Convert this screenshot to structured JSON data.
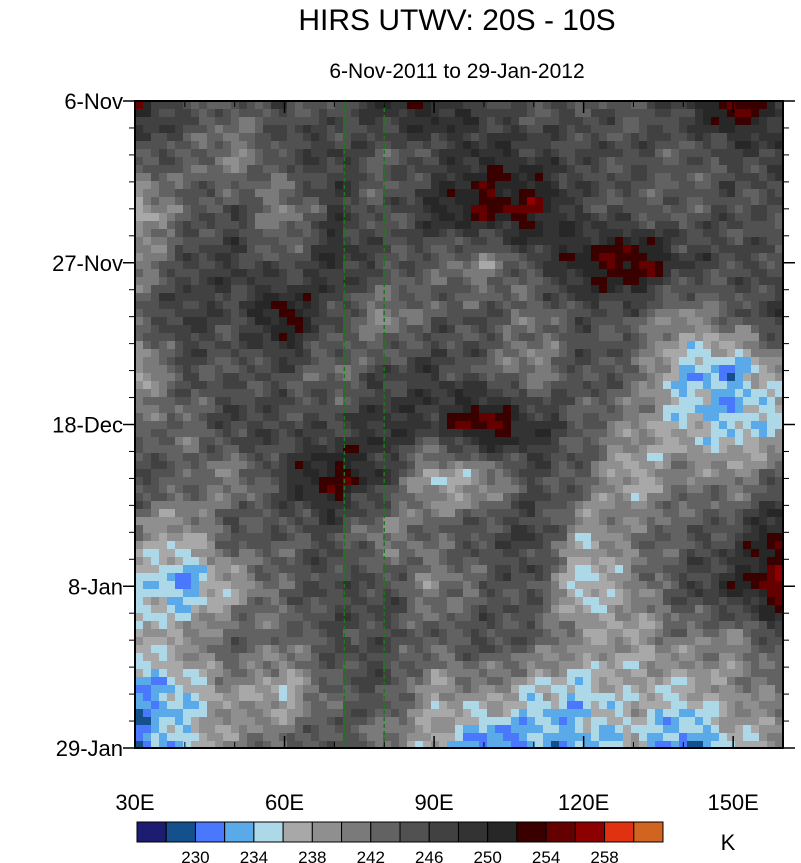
{
  "chart_data": {
    "type": "heatmap",
    "title": "HIRS UTWV: 20S - 10S",
    "subtitle": "6-Nov-2011 to 29-Jan-2012",
    "x_axis": {
      "range_deg_east": [
        30,
        160
      ],
      "ticks": [
        30,
        60,
        90,
        120,
        150
      ],
      "tick_labels": [
        "30E",
        "60E",
        "90E",
        "120E",
        "150E"
      ],
      "minor_step": 10
    },
    "y_axis": {
      "range_days_since_6Nov": [
        0,
        84
      ],
      "ticks": [
        0,
        21,
        42,
        63,
        84
      ],
      "tick_labels": [
        "6-Nov",
        "27-Nov",
        "18-Dec",
        "8-Jan",
        "29-Jan"
      ],
      "minor_step": 3.5,
      "direction": "time increases downward"
    },
    "units": "K",
    "levels": [
      228,
      230,
      232,
      234,
      236,
      238,
      240,
      242,
      244,
      246,
      248,
      250,
      252,
      254,
      256,
      258
    ],
    "colorbar_labels": [
      "230",
      "234",
      "238",
      "242",
      "246",
      "250",
      "254",
      "258"
    ],
    "colors": [
      "#1c1c70",
      "#13508c",
      "#4a78fc",
      "#5aaaea",
      "#acd8e8",
      "#a8a8a8",
      "#8f8f8f",
      "#7a7a7a",
      "#626262",
      "#515151",
      "#414141",
      "#333333",
      "#272727",
      "#3a0000",
      "#650000",
      "#8c0000",
      "#e03210",
      "#d06420"
    ],
    "reference_lines_deg_east": [
      72,
      80
    ],
    "reference_line_color": "#1a7a1a",
    "grid_lon": [
      30,
      40,
      50,
      60,
      70,
      80,
      90,
      100,
      110,
      120,
      130,
      140,
      150,
      160
    ],
    "grid_day": [
      0,
      7,
      14,
      21,
      28,
      35,
      42,
      49,
      56,
      63,
      70,
      77,
      84
    ],
    "values_approx": [
      [
        252,
        246,
        244,
        246,
        244,
        250,
        252,
        246,
        244,
        246,
        244,
        248,
        256,
        248
      ],
      [
        246,
        244,
        240,
        246,
        248,
        244,
        246,
        250,
        248,
        246,
        246,
        244,
        246,
        248
      ],
      [
        236,
        244,
        246,
        240,
        248,
        244,
        250,
        254,
        254,
        246,
        244,
        244,
        246,
        244
      ],
      [
        240,
        246,
        248,
        244,
        250,
        246,
        244,
        240,
        246,
        252,
        256,
        248,
        246,
        246
      ],
      [
        244,
        248,
        246,
        254,
        246,
        240,
        244,
        246,
        242,
        246,
        244,
        240,
        244,
        248
      ],
      [
        236,
        246,
        244,
        246,
        242,
        246,
        248,
        244,
        240,
        246,
        244,
        234,
        232,
        240
      ],
      [
        244,
        242,
        248,
        246,
        246,
        250,
        248,
        256,
        250,
        244,
        240,
        236,
        234,
        236
      ],
      [
        246,
        244,
        240,
        248,
        254,
        248,
        236,
        238,
        246,
        244,
        236,
        242,
        240,
        244
      ],
      [
        240,
        238,
        246,
        244,
        246,
        240,
        244,
        246,
        248,
        238,
        242,
        244,
        246,
        254
      ],
      [
        236,
        232,
        238,
        244,
        246,
        246,
        240,
        244,
        246,
        234,
        240,
        246,
        250,
        256
      ],
      [
        236,
        240,
        244,
        242,
        246,
        246,
        244,
        246,
        244,
        240,
        238,
        242,
        240,
        246
      ],
      [
        232,
        234,
        240,
        236,
        244,
        246,
        238,
        240,
        236,
        234,
        238,
        236,
        240,
        242
      ],
      [
        230,
        236,
        240,
        244,
        246,
        240,
        238,
        230,
        232,
        234,
        236,
        230,
        236,
        238
      ]
    ]
  }
}
